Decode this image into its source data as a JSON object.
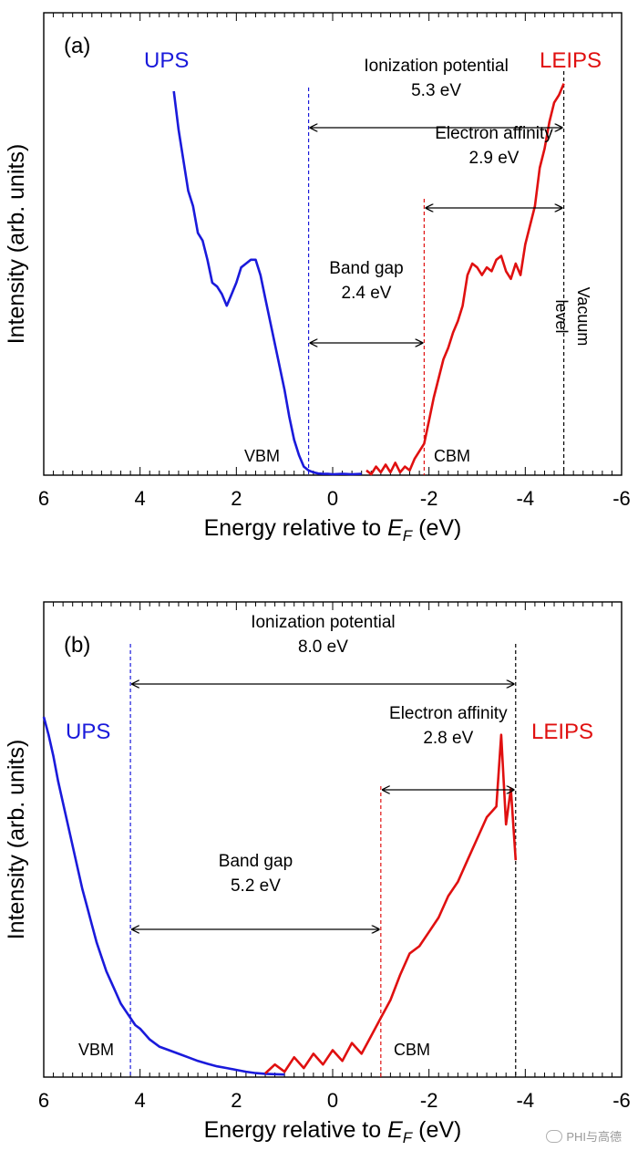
{
  "chart_data": [
    {
      "type": "line",
      "panel_label": "(a)",
      "xlabel_prefix": "Energy relative to ",
      "xlabel_italic": "E",
      "xlabel_sub": "F",
      "xlabel_suffix": " (eV)",
      "ylabel": "Intensity (arb. units)",
      "xlim": [
        6,
        -6
      ],
      "ylim": [
        0,
        100
      ],
      "x_ticks": [
        6,
        4,
        2,
        0,
        -2,
        -4,
        -6
      ],
      "x_tick_labels": [
        "6",
        "4",
        "2",
        "0",
        "-2",
        "-4",
        "-6"
      ],
      "series": [
        {
          "name": "UPS",
          "color": "#1a1adb",
          "x": [
            3.3,
            3.2,
            3.1,
            3.0,
            2.9,
            2.8,
            2.7,
            2.6,
            2.5,
            2.4,
            2.3,
            2.2,
            2.1,
            2.0,
            1.9,
            1.8,
            1.7,
            1.6,
            1.5,
            1.4,
            1.3,
            1.2,
            1.1,
            1.0,
            0.9,
            0.8,
            0.7,
            0.6,
            0.5,
            0.4,
            0.3,
            0.2,
            0.1,
            0.0,
            -0.2,
            -0.4,
            -0.6
          ],
          "y": [
            100,
            90,
            82,
            74,
            70,
            63,
            61,
            56,
            50,
            49,
            47,
            44,
            47,
            50,
            54,
            55,
            56,
            56,
            52,
            46,
            40,
            34,
            28,
            22,
            15,
            9,
            5,
            2,
            1,
            0.5,
            0.2,
            0.1,
            0.1,
            0.0,
            0.1,
            0.0,
            0.1
          ]
        },
        {
          "name": "LEIPS",
          "color": "#e01010",
          "x": [
            -0.7,
            -0.8,
            -0.9,
            -1.0,
            -1.1,
            -1.2,
            -1.3,
            -1.4,
            -1.5,
            -1.6,
            -1.7,
            -1.8,
            -1.9,
            -2.0,
            -2.1,
            -2.2,
            -2.3,
            -2.4,
            -2.5,
            -2.6,
            -2.7,
            -2.8,
            -2.9,
            -3.0,
            -3.1,
            -3.2,
            -3.3,
            -3.4,
            -3.5,
            -3.6,
            -3.7,
            -3.8,
            -3.9,
            -4.0,
            -4.1,
            -4.2,
            -4.3,
            -4.4,
            -4.5,
            -4.6,
            -4.7,
            -4.8
          ],
          "y": [
            1,
            0,
            2,
            0.5,
            2.5,
            0.5,
            3,
            0.5,
            2,
            1,
            4,
            6,
            8,
            14,
            20,
            25,
            30,
            33,
            37,
            40,
            44,
            52,
            55,
            54,
            52,
            54,
            53,
            56,
            57,
            53,
            51,
            55,
            52,
            60,
            65,
            70,
            80,
            85,
            92,
            97,
            99,
            102
          ]
        }
      ],
      "series_labels": {
        "ups": "UPS",
        "leips": "LEIPS"
      },
      "markers": {
        "vbm": {
          "x": 0.5,
          "label": "VBM",
          "color": "#1a1adb"
        },
        "cbm": {
          "x": -1.9,
          "label": "CBM",
          "color": "#e01010"
        },
        "vacuum": {
          "x": -4.8,
          "label": "Vacuum level",
          "color": "#000000"
        }
      },
      "annotations": {
        "ionization_potential": {
          "label": "Ionization potential",
          "value": "5.3 eV",
          "from": 0.5,
          "to": -4.8
        },
        "electron_affinity": {
          "label": "Electron affinity",
          "value": "2.9 eV",
          "from": -1.9,
          "to": -4.8
        },
        "band_gap": {
          "label": "Band gap",
          "value": "2.4 eV",
          "from": 0.5,
          "to": -1.9
        }
      }
    },
    {
      "type": "line",
      "panel_label": "(b)",
      "xlabel_prefix": "Energy relative to ",
      "xlabel_italic": "E",
      "xlabel_sub": "F",
      "xlabel_suffix": " (eV)",
      "ylabel": "Intensity (arb. units)",
      "xlim": [
        6,
        -6
      ],
      "ylim": [
        0,
        100
      ],
      "x_ticks": [
        6,
        4,
        2,
        0,
        -2,
        -4,
        -6
      ],
      "x_tick_labels": [
        "6",
        "4",
        "2",
        "0",
        "-2",
        "-4",
        "-6"
      ],
      "series": [
        {
          "name": "UPS",
          "color": "#1a1adb",
          "x": [
            6.0,
            5.9,
            5.8,
            5.7,
            5.6,
            5.5,
            5.4,
            5.3,
            5.2,
            5.1,
            5.0,
            4.9,
            4.8,
            4.7,
            4.6,
            4.5,
            4.4,
            4.3,
            4.2,
            4.1,
            4.0,
            3.8,
            3.6,
            3.4,
            3.2,
            3.0,
            2.8,
            2.6,
            2.4,
            2.2,
            2.0,
            1.8,
            1.6,
            1.4,
            1.2,
            1.0
          ],
          "y": [
            100,
            95,
            89,
            82,
            76,
            70,
            64,
            58,
            52,
            47,
            42,
            37,
            33,
            29,
            26,
            23,
            20,
            18,
            16,
            14,
            13,
            10,
            8,
            7,
            6,
            5,
            4,
            3.2,
            2.5,
            2.0,
            1.5,
            1.0,
            0.6,
            0.4,
            0.3,
            0.2
          ]
        },
        {
          "name": "LEIPS",
          "color": "#e01010",
          "x": [
            1.4,
            1.2,
            1.0,
            0.8,
            0.6,
            0.4,
            0.2,
            0.0,
            -0.2,
            -0.4,
            -0.6,
            -0.8,
            -1.0,
            -1.2,
            -1.4,
            -1.6,
            -1.8,
            -2.0,
            -2.2,
            -2.4,
            -2.6,
            -2.8,
            -3.0,
            -3.2,
            -3.4,
            -3.5,
            -3.6,
            -3.7,
            -3.8
          ],
          "y": [
            0.5,
            3,
            1,
            5,
            2,
            6,
            3,
            7,
            4,
            9,
            6,
            11,
            16,
            21,
            28,
            34,
            36,
            40,
            44,
            50,
            54,
            60,
            66,
            72,
            75,
            95,
            70,
            80,
            60
          ]
        }
      ],
      "series_labels": {
        "ups": "UPS",
        "leips": "LEIPS"
      },
      "markers": {
        "vbm": {
          "x": 4.2,
          "label": "VBM",
          "color": "#1a1adb"
        },
        "cbm": {
          "x": -1.0,
          "label": "CBM",
          "color": "#e01010"
        },
        "vacuum": {
          "x": -3.8,
          "label": "",
          "color": "#000000"
        }
      },
      "annotations": {
        "ionization_potential": {
          "label": "Ionization potential",
          "value": "8.0 eV",
          "from": 4.2,
          "to": -3.8
        },
        "electron_affinity": {
          "label": "Electron affinity",
          "value": "2.8 eV",
          "from": -1.0,
          "to": -3.8
        },
        "band_gap": {
          "label": "Band gap",
          "value": "5.2 eV",
          "from": 4.2,
          "to": -1.0
        }
      }
    }
  ],
  "watermark": "PHI与高德"
}
